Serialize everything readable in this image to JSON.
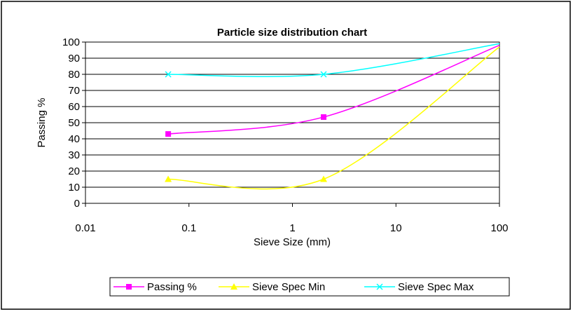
{
  "chart_data": {
    "type": "line",
    "title": "Particle size distribution chart",
    "xlabel": "Sieve Size (mm)",
    "ylabel": "Passing %",
    "x_scale": "log",
    "xlim": [
      0.01,
      100
    ],
    "ylim": [
      0,
      100
    ],
    "x_ticks": [
      "0.01",
      "0.1",
      "1",
      "10",
      "100"
    ],
    "y_ticks": [
      "0",
      "10",
      "20",
      "30",
      "40",
      "50",
      "60",
      "70",
      "80",
      "90",
      "100"
    ],
    "grid": "horizontal",
    "legend_position": "bottom",
    "series": [
      {
        "name": "Passing %",
        "color": "#ff00ff",
        "marker": "square",
        "x": [
          0.063,
          2,
          100
        ],
        "y": [
          43,
          53.5,
          98
        ]
      },
      {
        "name": "Sieve Spec Min",
        "color": "#ffff00",
        "marker": "triangle",
        "x": [
          0.063,
          2,
          100
        ],
        "y": [
          15,
          15,
          97
        ]
      },
      {
        "name": "Sieve Spec Max",
        "color": "#00ffff",
        "marker": "x",
        "x": [
          0.063,
          2,
          100
        ],
        "y": [
          80,
          80,
          99
        ]
      }
    ]
  }
}
